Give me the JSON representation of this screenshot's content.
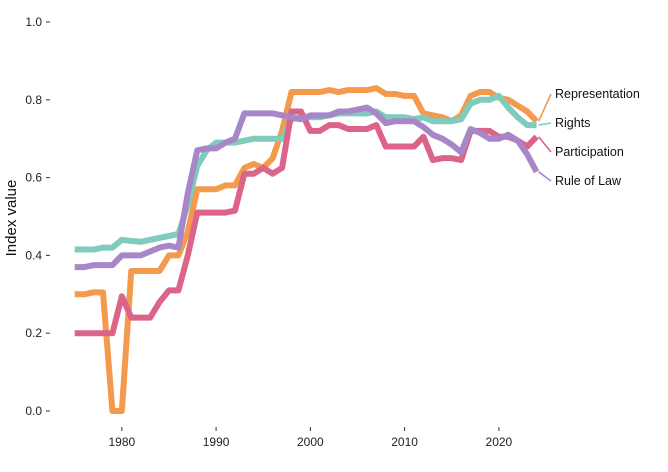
{
  "chart_data": {
    "type": "line",
    "title": "",
    "xlabel": "",
    "ylabel": "Index value",
    "xlim": [
      1974.5,
      2025
    ],
    "ylim": [
      0,
      1
    ],
    "x_ticks": [
      1980,
      1990,
      2000,
      2010,
      2020
    ],
    "y_ticks": [
      "0.0",
      "0.2",
      "0.4",
      "0.6",
      "0.8",
      "1.0"
    ],
    "grid": false,
    "legend": "direct labels at line ends (right)",
    "x": [
      1975,
      1976,
      1977,
      1978,
      1979,
      1980,
      1981,
      1982,
      1983,
      1984,
      1985,
      1986,
      1987,
      1988,
      1989,
      1990,
      1991,
      1992,
      1993,
      1994,
      1995,
      1996,
      1997,
      1998,
      1999,
      2000,
      2001,
      2002,
      2003,
      2004,
      2005,
      2006,
      2007,
      2008,
      2009,
      2010,
      2011,
      2012,
      2013,
      2014,
      2015,
      2016,
      2017,
      2018,
      2019,
      2020,
      2021,
      2022,
      2023,
      2024
    ],
    "series": [
      {
        "name": "Representation",
        "color": "#f39a4c",
        "values": [
          0.3,
          0.3,
          0.305,
          0.305,
          0.0,
          0.0,
          0.36,
          0.36,
          0.36,
          0.36,
          0.4,
          0.4,
          0.46,
          0.57,
          0.57,
          0.57,
          0.58,
          0.58,
          0.625,
          0.635,
          0.625,
          0.65,
          0.72,
          0.82,
          0.82,
          0.82,
          0.82,
          0.825,
          0.82,
          0.825,
          0.825,
          0.825,
          0.83,
          0.815,
          0.815,
          0.81,
          0.81,
          0.765,
          0.76,
          0.755,
          0.745,
          0.76,
          0.81,
          0.82,
          0.82,
          0.805,
          0.8,
          0.785,
          0.77,
          0.745
        ]
      },
      {
        "name": "Rights",
        "color": "#7fcbbd",
        "values": [
          0.415,
          0.415,
          0.415,
          0.42,
          0.42,
          0.44,
          0.437,
          0.435,
          0.44,
          0.445,
          0.45,
          0.455,
          0.53,
          0.63,
          0.67,
          0.69,
          0.69,
          0.69,
          0.695,
          0.7,
          0.7,
          0.7,
          0.7,
          0.75,
          0.755,
          0.755,
          0.755,
          0.76,
          0.765,
          0.765,
          0.765,
          0.765,
          0.77,
          0.755,
          0.755,
          0.755,
          0.75,
          0.755,
          0.745,
          0.745,
          0.745,
          0.75,
          0.79,
          0.8,
          0.8,
          0.81,
          0.78,
          0.755,
          0.735,
          0.735
        ]
      },
      {
        "name": "Participation",
        "color": "#dc6489",
        "values": [
          0.2,
          0.2,
          0.2,
          0.2,
          0.2,
          0.295,
          0.24,
          0.24,
          0.24,
          0.28,
          0.31,
          0.31,
          0.4,
          0.51,
          0.51,
          0.51,
          0.51,
          0.515,
          0.61,
          0.61,
          0.625,
          0.61,
          0.625,
          0.77,
          0.77,
          0.72,
          0.72,
          0.735,
          0.735,
          0.725,
          0.725,
          0.725,
          0.735,
          0.68,
          0.68,
          0.68,
          0.68,
          0.705,
          0.645,
          0.65,
          0.65,
          0.645,
          0.72,
          0.72,
          0.72,
          0.705,
          0.705,
          0.695,
          0.68,
          0.705
        ]
      },
      {
        "name": "Rule of Law",
        "color": "#a887c9",
        "values": [
          0.37,
          0.37,
          0.375,
          0.375,
          0.375,
          0.4,
          0.4,
          0.4,
          0.41,
          0.42,
          0.425,
          0.42,
          0.56,
          0.67,
          0.675,
          0.675,
          0.69,
          0.7,
          0.765,
          0.765,
          0.765,
          0.765,
          0.76,
          0.755,
          0.75,
          0.76,
          0.76,
          0.76,
          0.77,
          0.77,
          0.775,
          0.78,
          0.765,
          0.74,
          0.745,
          0.745,
          0.745,
          0.73,
          0.71,
          0.7,
          0.685,
          0.665,
          0.725,
          0.715,
          0.7,
          0.7,
          0.71,
          0.695,
          0.66,
          0.615
        ]
      }
    ]
  }
}
